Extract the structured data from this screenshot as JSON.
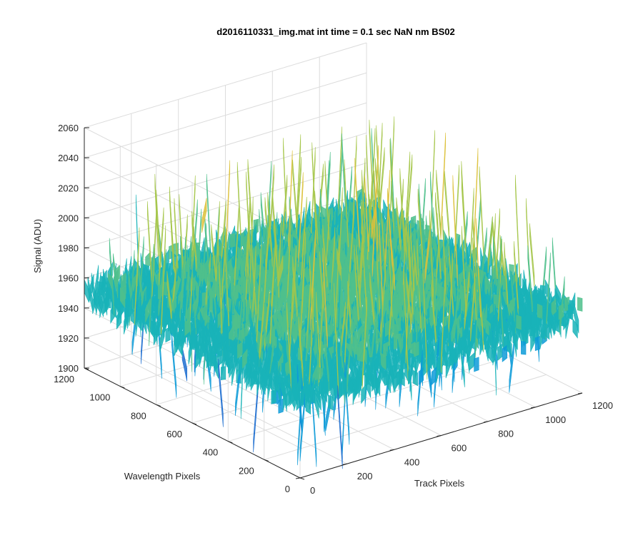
{
  "chart_data": {
    "type": "surface",
    "title": "d2016110331_img.mat int time = 0.1 sec  NaN nm BS02",
    "xlabel": "Track Pixels",
    "ylabel": "Wavelength Pixels",
    "zlabel": "Signal (ADU)",
    "xlim": [
      0,
      1200
    ],
    "ylim": [
      0,
      1200
    ],
    "zlim": [
      1900,
      2060
    ],
    "x_ticks": [
      "0",
      "200",
      "400",
      "600",
      "800",
      "1000",
      "1200"
    ],
    "y_ticks": [
      "0",
      "200",
      "400",
      "600",
      "800",
      "1000",
      "1200"
    ],
    "z_ticks": [
      "1900",
      "1920",
      "1940",
      "1960",
      "1980",
      "2000",
      "2020",
      "2040",
      "2060"
    ],
    "grid": true,
    "colormap": [
      "#1f6fd0",
      "#0d9bd8",
      "#19b3b8",
      "#4fc08c",
      "#a5c64a",
      "#dcc13a"
    ],
    "surface_stats": {
      "typical_signal": 1955,
      "noise_min": 1905,
      "noise_max": 2050
    }
  }
}
